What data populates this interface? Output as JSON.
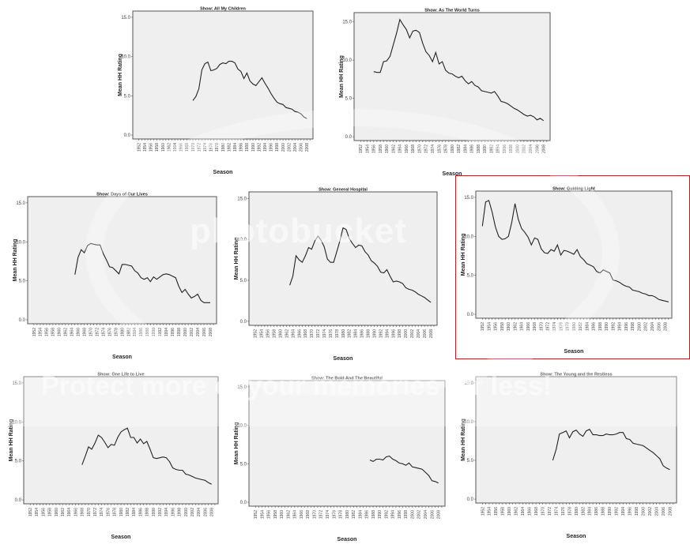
{
  "chart_data": [
    {
      "type": "line",
      "title": "Show: All My Children",
      "xlabel": "Season",
      "ylabel": "Mean HH Rating",
      "ylim": [
        -0.5,
        15.8
      ],
      "yticks": [
        "0.0",
        "5.0",
        "10.0",
        "15.0"
      ],
      "x_categories": [
        "1952",
        "1954",
        "1956",
        "1958",
        "1960",
        "1962",
        "1964",
        "1966",
        "1968",
        "1970",
        "1972",
        "1974",
        "1976",
        "1978",
        "1980",
        "1982",
        "1984",
        "1986",
        "1988",
        "1990",
        "1992",
        "1994",
        "1996",
        "1998",
        "2000",
        "2002",
        "2004",
        "2006",
        "2008"
      ],
      "x": [
        1970,
        1971,
        1972,
        1973,
        1974,
        1975,
        1976,
        1977,
        1978,
        1979,
        1980,
        1981,
        1982,
        1983,
        1984,
        1985,
        1986,
        1987,
        1988,
        1989,
        1990,
        1991,
        1992,
        1993,
        1994,
        1995,
        1996,
        1997,
        1998,
        1999,
        2000,
        2001,
        2002,
        2003,
        2004,
        2005,
        2006,
        2007,
        2008
      ],
      "values": [
        4.4,
        4.9,
        5.9,
        8.3,
        9.1,
        9.3,
        8.2,
        8.3,
        8.5,
        9.0,
        9.2,
        9.1,
        9.4,
        9.4,
        9.2,
        8.4,
        8.1,
        7.2,
        7.9,
        6.9,
        6.5,
        6.3,
        6.8,
        7.3,
        6.6,
        6.0,
        5.3,
        4.7,
        4.2,
        4.0,
        3.9,
        3.5,
        3.4,
        3.3,
        3.0,
        2.9,
        2.7,
        2.3,
        2.1
      ],
      "grid": false,
      "legend": "none"
    },
    {
      "type": "line",
      "title": "Show: As The World Turns",
      "xlabel": "Season",
      "ylabel": "Mean HH Rating",
      "ylim": [
        -0.5,
        16.2
      ],
      "yticks": [
        "0.0",
        "5.0",
        "10.0",
        "15.0"
      ],
      "x_categories": [
        "1952",
        "1954",
        "1956",
        "1958",
        "1960",
        "1962",
        "1964",
        "1966",
        "1968",
        "1970",
        "1972",
        "1974",
        "1976",
        "1978",
        "1980",
        "1982",
        "1984",
        "1986",
        "1988",
        "1990",
        "1992",
        "1994",
        "1996",
        "1998",
        "2000",
        "2002",
        "2004",
        "2006",
        "2008"
      ],
      "x": [
        1956,
        1957,
        1958,
        1959,
        1960,
        1961,
        1962,
        1963,
        1964,
        1965,
        1966,
        1967,
        1968,
        1969,
        1970,
        1971,
        1972,
        1973,
        1974,
        1975,
        1976,
        1977,
        1978,
        1979,
        1980,
        1981,
        1982,
        1983,
        1984,
        1985,
        1986,
        1987,
        1988,
        1989,
        1990,
        1991,
        1992,
        1993,
        1994,
        1995,
        1996,
        1997,
        1998,
        1999,
        2000,
        2001,
        2002,
        2003,
        2004,
        2005,
        2006,
        2007,
        2008
      ],
      "values": [
        8.5,
        8.4,
        8.4,
        9.8,
        9.9,
        10.5,
        12.0,
        13.5,
        15.3,
        14.6,
        14.0,
        12.9,
        13.8,
        13.9,
        13.6,
        12.2,
        11.1,
        10.6,
        9.8,
        11.0,
        9.5,
        9.8,
        8.7,
        8.3,
        8.2,
        7.9,
        7.7,
        7.9,
        7.3,
        6.9,
        7.2,
        6.7,
        6.5,
        6.0,
        5.9,
        5.8,
        5.7,
        5.9,
        5.3,
        4.6,
        4.5,
        4.3,
        4.0,
        3.7,
        3.5,
        3.2,
        2.9,
        2.7,
        2.8,
        2.6,
        2.2,
        2.4,
        2.1
      ],
      "grid": false,
      "legend": "none"
    },
    {
      "type": "line",
      "title": "Show: Days of Our Lives",
      "xlabel": "Season",
      "ylabel": "Mean HH Rating",
      "ylim": [
        -0.5,
        15.8
      ],
      "yticks": [
        "0.0",
        "5.0",
        "10.0",
        "15.0"
      ],
      "x_categories": [
        "1952",
        "1954",
        "1956",
        "1958",
        "1960",
        "1962",
        "1964",
        "1966",
        "1968",
        "1970",
        "1972",
        "1974",
        "1976",
        "1978",
        "1980",
        "1982",
        "1984",
        "1986",
        "1988",
        "1990",
        "1992",
        "1994",
        "1996",
        "1998",
        "2000",
        "2002",
        "2004",
        "2006",
        "2008"
      ],
      "x": [
        1965,
        1966,
        1967,
        1968,
        1969,
        1970,
        1971,
        1972,
        1973,
        1974,
        1975,
        1976,
        1977,
        1978,
        1979,
        1980,
        1981,
        1982,
        1983,
        1984,
        1985,
        1986,
        1987,
        1988,
        1989,
        1990,
        1991,
        1992,
        1993,
        1994,
        1995,
        1996,
        1997,
        1998,
        1999,
        2000,
        2001,
        2002,
        2003,
        2004,
        2005,
        2006,
        2007,
        2008
      ],
      "values": [
        5.8,
        8.0,
        9.0,
        8.6,
        9.5,
        9.8,
        9.7,
        9.6,
        9.6,
        8.5,
        7.7,
        6.8,
        6.7,
        6.3,
        5.9,
        7.1,
        7.1,
        7.0,
        6.9,
        6.3,
        6.0,
        5.4,
        5.2,
        5.4,
        4.9,
        5.5,
        5.2,
        5.5,
        5.8,
        5.9,
        5.8,
        5.6,
        5.4,
        4.3,
        3.5,
        3.9,
        3.3,
        2.8,
        3.0,
        3.3,
        2.5,
        2.2,
        2.2,
        2.2
      ],
      "grid": false,
      "legend": "none"
    },
    {
      "type": "line",
      "title": "Show: General Hospital",
      "xlabel": "Season",
      "ylabel": "Mean HH Rating",
      "ylim": [
        -0.5,
        15.8
      ],
      "yticks": [
        "0.0",
        "5.0",
        "10.0",
        "15.0"
      ],
      "x_categories": [
        "1952",
        "1954",
        "1956",
        "1958",
        "1960",
        "1962",
        "1964",
        "1966",
        "1968",
        "1970",
        "1972",
        "1974",
        "1976",
        "1978",
        "1980",
        "1982",
        "1984",
        "1986",
        "1988",
        "1990",
        "1992",
        "1994",
        "1996",
        "1998",
        "2000",
        "2002",
        "2004",
        "2006",
        "2008"
      ],
      "x": [
        1963,
        1964,
        1965,
        1966,
        1967,
        1968,
        1969,
        1970,
        1971,
        1972,
        1973,
        1974,
        1975,
        1976,
        1977,
        1978,
        1979,
        1980,
        1981,
        1982,
        1983,
        1984,
        1985,
        1986,
        1987,
        1988,
        1989,
        1990,
        1991,
        1992,
        1993,
        1994,
        1995,
        1996,
        1997,
        1998,
        1999,
        2000,
        2001,
        2002,
        2003,
        2004,
        2005,
        2006,
        2007,
        2008
      ],
      "values": [
        4.4,
        5.5,
        8.0,
        7.5,
        7.2,
        8.0,
        9.0,
        8.8,
        9.8,
        10.4,
        9.9,
        9.1,
        7.6,
        7.2,
        7.2,
        8.5,
        9.8,
        11.4,
        11.2,
        10.1,
        9.5,
        9.0,
        9.3,
        9.2,
        8.5,
        8.1,
        7.4,
        7.1,
        6.7,
        6.0,
        5.9,
        6.3,
        5.5,
        4.8,
        4.9,
        4.8,
        4.6,
        4.1,
        3.9,
        3.8,
        3.6,
        3.3,
        3.1,
        2.9,
        2.6,
        2.3
      ],
      "grid": false,
      "legend": "none"
    },
    {
      "type": "line",
      "title": "Show: Guiding Light",
      "xlabel": "Season",
      "ylabel": "Mean HH Rating",
      "ylim": [
        -0.5,
        15.8
      ],
      "yticks": [
        "0.0",
        "5.0",
        "10.0",
        "15.0"
      ],
      "x_categories": [
        "1952",
        "1954",
        "1956",
        "1958",
        "1960",
        "1962",
        "1964",
        "1966",
        "1968",
        "1970",
        "1972",
        "1974",
        "1976",
        "1978",
        "1980",
        "1982",
        "1984",
        "1986",
        "1988",
        "1990",
        "1992",
        "1994",
        "1996",
        "1998",
        "2000",
        "2002",
        "2004",
        "2006",
        "2008"
      ],
      "x": [
        1952,
        1953,
        1954,
        1955,
        1956,
        1957,
        1958,
        1959,
        1960,
        1961,
        1962,
        1963,
        1964,
        1965,
        1966,
        1967,
        1968,
        1969,
        1970,
        1971,
        1972,
        1973,
        1974,
        1975,
        1976,
        1977,
        1978,
        1979,
        1980,
        1981,
        1982,
        1983,
        1984,
        1985,
        1986,
        1987,
        1988,
        1989,
        1990,
        1991,
        1992,
        1993,
        1994,
        1995,
        1996,
        1997,
        1998,
        1999,
        2000,
        2001,
        2002,
        2003,
        2004,
        2005,
        2006,
        2007,
        2008,
        2009
      ],
      "values": [
        11.3,
        14.4,
        14.6,
        13.1,
        11.2,
        10.0,
        9.6,
        9.7,
        10.0,
        11.8,
        14.2,
        12.2,
        11.0,
        10.5,
        9.9,
        8.9,
        9.8,
        9.6,
        8.4,
        7.9,
        7.8,
        8.3,
        8.1,
        8.9,
        7.6,
        8.2,
        8.1,
        7.9,
        7.7,
        8.3,
        7.4,
        7.0,
        6.5,
        6.3,
        6.1,
        5.5,
        5.3,
        5.7,
        5.5,
        5.3,
        4.4,
        4.3,
        4.1,
        3.8,
        3.6,
        3.5,
        3.1,
        3.0,
        2.9,
        2.7,
        2.6,
        2.4,
        2.4,
        2.2,
        1.9,
        1.8,
        1.7,
        1.6
      ],
      "grid": false,
      "legend": "none"
    },
    {
      "type": "line",
      "title": "Show: One Life to Live",
      "xlabel": "Season",
      "ylabel": "Mean HH Rating",
      "ylim": [
        -0.5,
        15.8
      ],
      "yticks": [
        "0.0",
        "5.0",
        "10.0",
        "15.0"
      ],
      "x_categories": [
        "1952",
        "1954",
        "1956",
        "1958",
        "1960",
        "1962",
        "1964",
        "1966",
        "1968",
        "1970",
        "1972",
        "1974",
        "1976",
        "1978",
        "1980",
        "1982",
        "1984",
        "1986",
        "1988",
        "1990",
        "1992",
        "1994",
        "1996",
        "1998",
        "2000",
        "2002",
        "2004",
        "2006",
        "2008"
      ],
      "x": [
        1968,
        1969,
        1970,
        1971,
        1972,
        1973,
        1974,
        1975,
        1976,
        1977,
        1978,
        1979,
        1980,
        1981,
        1982,
        1983,
        1984,
        1985,
        1986,
        1987,
        1988,
        1989,
        1990,
        1991,
        1992,
        1993,
        1994,
        1995,
        1996,
        1997,
        1998,
        1999,
        2000,
        2001,
        2002,
        2003,
        2004,
        2005,
        2006,
        2007,
        2008
      ],
      "values": [
        4.5,
        5.6,
        6.8,
        6.5,
        7.3,
        8.3,
        8.0,
        7.4,
        6.7,
        7.1,
        7.0,
        8.0,
        8.7,
        9.0,
        9.2,
        8.0,
        8.0,
        7.3,
        7.8,
        7.2,
        7.5,
        6.5,
        5.4,
        5.3,
        5.4,
        5.5,
        5.4,
        4.9,
        4.1,
        3.9,
        3.8,
        3.8,
        3.3,
        3.2,
        3.0,
        2.8,
        2.7,
        2.6,
        2.5,
        2.2,
        2.0
      ],
      "grid": false,
      "legend": "none"
    },
    {
      "type": "line",
      "title": "Show: The Bold And The Beautiful",
      "xlabel": "Season",
      "ylabel": "Mean HH Rating",
      "ylim": [
        -0.5,
        15.8
      ],
      "yticks": [
        "0.0",
        "5.0",
        "10.0",
        "15.0"
      ],
      "x_categories": [
        "1952",
        "1954",
        "1956",
        "1958",
        "1960",
        "1962",
        "1964",
        "1966",
        "1968",
        "1970",
        "1972",
        "1974",
        "1976",
        "1978",
        "1980",
        "1982",
        "1984",
        "1986",
        "1988",
        "1990",
        "1992",
        "1994",
        "1996",
        "1998",
        "2000",
        "2002",
        "2004",
        "2006",
        "2008"
      ],
      "x": [
        1987,
        1988,
        1989,
        1990,
        1991,
        1992,
        1993,
        1994,
        1995,
        1996,
        1997,
        1998,
        1999,
        2000,
        2001,
        2002,
        2003,
        2004,
        2005,
        2006,
        2007,
        2008
      ],
      "values": [
        5.5,
        5.3,
        5.6,
        5.6,
        5.5,
        5.9,
        6.0,
        5.6,
        5.4,
        5.1,
        5.0,
        4.8,
        5.1,
        4.6,
        4.5,
        4.4,
        4.3,
        3.9,
        3.5,
        2.8,
        2.7,
        2.5
      ],
      "grid": false,
      "legend": "none"
    },
    {
      "type": "line",
      "title": "Show: The Young and the Restless",
      "xlabel": "Season",
      "ylabel": "Mean HH Rating",
      "ylim": [
        -0.5,
        15.8
      ],
      "yticks": [
        "0.0",
        "5.0",
        "10.0",
        "15.0"
      ],
      "x_categories": [
        "1952",
        "1954",
        "1956",
        "1958",
        "1960",
        "1962",
        "1964",
        "1966",
        "1968",
        "1970",
        "1972",
        "1974",
        "1976",
        "1978",
        "1980",
        "1982",
        "1984",
        "1986",
        "1988",
        "1990",
        "1992",
        "1994",
        "1996",
        "1998",
        "2000",
        "2002",
        "2004",
        "2006",
        "2008"
      ],
      "x": [
        1973,
        1974,
        1975,
        1976,
        1977,
        1978,
        1979,
        1980,
        1981,
        1982,
        1983,
        1984,
        1985,
        1986,
        1987,
        1988,
        1989,
        1990,
        1991,
        1992,
        1993,
        1994,
        1995,
        1996,
        1997,
        1998,
        1999,
        2000,
        2001,
        2002,
        2003,
        2004,
        2005,
        2006,
        2007,
        2008
      ],
      "values": [
        5.0,
        6.4,
        8.4,
        8.6,
        8.8,
        7.9,
        8.7,
        8.9,
        8.4,
        8.1,
        8.8,
        9.0,
        8.3,
        8.3,
        8.2,
        8.2,
        8.4,
        8.3,
        8.3,
        8.4,
        8.6,
        8.6,
        7.8,
        7.7,
        7.2,
        7.1,
        7.0,
        6.9,
        6.6,
        6.3,
        6.0,
        5.6,
        5.2,
        4.3,
        4.0,
        3.8
      ],
      "grid": false,
      "legend": "none"
    }
  ],
  "watermark": {
    "brand": "photobucket",
    "tagline": "Protect more of your memories for less!"
  },
  "colors": {
    "plot_background": "#efefef",
    "line": "#222222",
    "selection_frame": "#b02020"
  }
}
